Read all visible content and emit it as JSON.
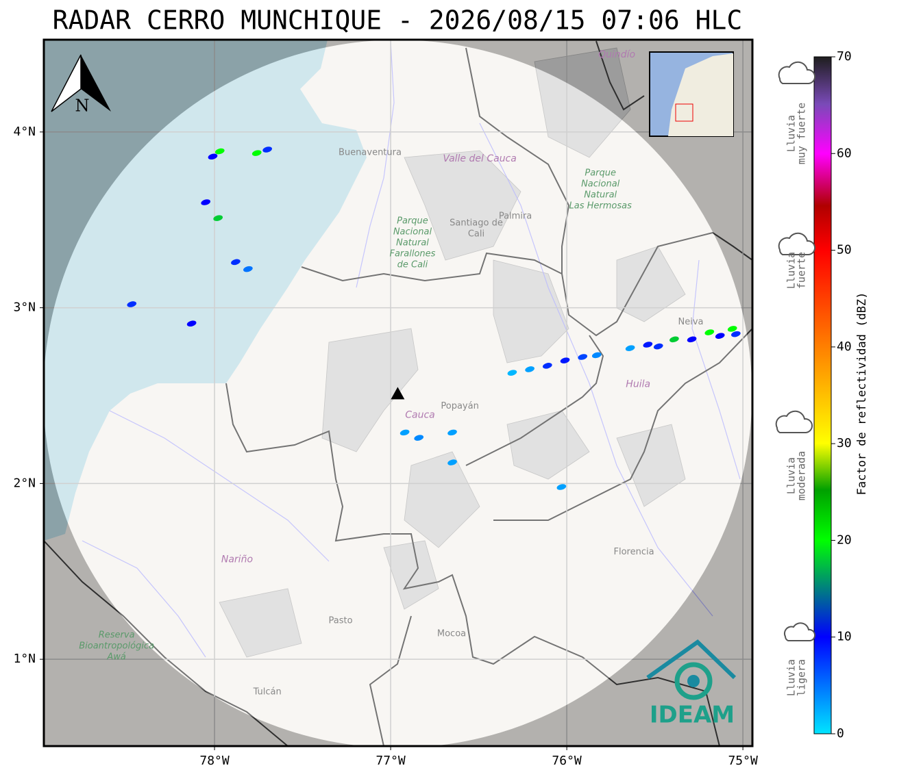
{
  "title": "RADAR CERRO MUNCHIQUE - 2026/08/15 07:06 HLC",
  "north": "N",
  "logo": "IDEAM",
  "map": {
    "xlim": [
      -78.969,
      -74.946
    ],
    "ylim": [
      0.506,
      4.525
    ],
    "xticks": [
      {
        "value": -78,
        "label": "78°W"
      },
      {
        "value": -77,
        "label": "77°W"
      },
      {
        "value": -76,
        "label": "76°W"
      },
      {
        "value": -75,
        "label": "75°W"
      }
    ],
    "yticks": [
      {
        "value": 1,
        "label": "1°N"
      },
      {
        "value": 2,
        "label": "2°N"
      },
      {
        "value": 3,
        "label": "3°N"
      },
      {
        "value": 4,
        "label": "4°N"
      }
    ],
    "radar": {
      "lon": -76.96,
      "lat": 2.51
    },
    "places": [
      {
        "kind": "place",
        "lon": -77.117,
        "lat": 3.883,
        "lines": [
          "Buenaventura"
        ]
      },
      {
        "kind": "dept",
        "lon": -76.494,
        "lat": 3.848,
        "lines": [
          "Valle del Cauca"
        ]
      },
      {
        "kind": "place",
        "lon": -76.514,
        "lat": 3.45,
        "lines": [
          "Santiago de",
          "Cali"
        ]
      },
      {
        "kind": "place",
        "lon": -76.292,
        "lat": 3.521,
        "lines": [
          "Palmira"
        ]
      },
      {
        "kind": "park",
        "lon": -76.876,
        "lat": 3.369,
        "lines": [
          "Parque",
          "Nacional",
          "Natural",
          "Farallones",
          "de Cali"
        ]
      },
      {
        "kind": "park",
        "lon": -75.809,
        "lat": 3.673,
        "lines": [
          "Parque",
          "Nacional",
          "Natural",
          "Las Hermosas"
        ]
      },
      {
        "kind": "place",
        "lon": -76.607,
        "lat": 2.439,
        "lines": [
          "Popayán"
        ]
      },
      {
        "kind": "dept",
        "lon": -76.833,
        "lat": 2.389,
        "lines": [
          "Cauca"
        ]
      },
      {
        "kind": "dept",
        "lon": -75.595,
        "lat": 2.564,
        "lines": [
          "Huila"
        ]
      },
      {
        "kind": "place",
        "lon": -75.296,
        "lat": 2.918,
        "lines": [
          "Neiva"
        ]
      },
      {
        "kind": "dept",
        "lon": -77.872,
        "lat": 1.568,
        "lines": [
          "Nariño"
        ]
      },
      {
        "kind": "place",
        "lon": -77.284,
        "lat": 1.218,
        "lines": [
          "Pasto"
        ]
      },
      {
        "kind": "place",
        "lon": -76.654,
        "lat": 1.144,
        "lines": [
          "Mocoa"
        ]
      },
      {
        "kind": "place",
        "lon": -75.619,
        "lat": 1.611,
        "lines": [
          "Florencia"
        ]
      },
      {
        "kind": "place",
        "lon": -77.7,
        "lat": 0.813,
        "lines": [
          "Tulcán"
        ]
      },
      {
        "kind": "dept",
        "lon": -75.716,
        "lat": 4.439,
        "lines": [
          "Quindío"
        ]
      },
      {
        "kind": "park",
        "lon": -78.556,
        "lat": 1.074,
        "lines": [
          "Reserva",
          "Bioantropológica",
          "Awá"
        ]
      }
    ],
    "echoes": [
      {
        "lon": -77.97,
        "lat": 3.89,
        "dbz": 20
      },
      {
        "lon": -77.76,
        "lat": 3.88,
        "dbz": 20
      },
      {
        "lon": -78.01,
        "lat": 3.86,
        "dbz": 10
      },
      {
        "lon": -77.7,
        "lat": 3.9,
        "dbz": 8
      },
      {
        "lon": -78.05,
        "lat": 3.6,
        "dbz": 10
      },
      {
        "lon": -77.98,
        "lat": 3.51,
        "dbz": 18
      },
      {
        "lon": -77.88,
        "lat": 3.26,
        "dbz": 8
      },
      {
        "lon": -77.81,
        "lat": 3.22,
        "dbz": 5
      },
      {
        "lon": -78.47,
        "lat": 3.02,
        "dbz": 8
      },
      {
        "lon": -78.13,
        "lat": 2.91,
        "dbz": 10
      },
      {
        "lon": -76.92,
        "lat": 2.29,
        "dbz": 3
      },
      {
        "lon": -76.84,
        "lat": 2.26,
        "dbz": 4
      },
      {
        "lon": -76.65,
        "lat": 2.29,
        "dbz": 3
      },
      {
        "lon": -76.65,
        "lat": 2.12,
        "dbz": 3
      },
      {
        "lon": -76.31,
        "lat": 2.63,
        "dbz": 2
      },
      {
        "lon": -76.21,
        "lat": 2.65,
        "dbz": 3
      },
      {
        "lon": -76.11,
        "lat": 2.67,
        "dbz": 8
      },
      {
        "lon": -76.01,
        "lat": 2.7,
        "dbz": 9
      },
      {
        "lon": -75.91,
        "lat": 2.72,
        "dbz": 7
      },
      {
        "lon": -75.83,
        "lat": 2.73,
        "dbz": 4
      },
      {
        "lon": -75.64,
        "lat": 2.77,
        "dbz": 3
      },
      {
        "lon": -75.54,
        "lat": 2.79,
        "dbz": 9
      },
      {
        "lon": -75.48,
        "lat": 2.78,
        "dbz": 8
      },
      {
        "lon": -75.39,
        "lat": 2.82,
        "dbz": 18
      },
      {
        "lon": -75.29,
        "lat": 2.82,
        "dbz": 10
      },
      {
        "lon": -75.19,
        "lat": 2.86,
        "dbz": 20
      },
      {
        "lon": -75.13,
        "lat": 2.84,
        "dbz": 10
      },
      {
        "lon": -75.06,
        "lat": 2.88,
        "dbz": 20
      },
      {
        "lon": -75.04,
        "lat": 2.85,
        "dbz": 8
      },
      {
        "lon": -76.03,
        "lat": 1.98,
        "dbz": 3
      }
    ]
  },
  "colorbar": {
    "label": "Factor de reflectividad (dBZ)",
    "lim": [
      0,
      70
    ],
    "ticks": [
      0,
      10,
      20,
      30,
      40,
      50,
      60,
      70
    ]
  },
  "legend": [
    {
      "lines": [
        "Lluvia",
        "muy fuerte"
      ]
    },
    {
      "lines": [
        "Lluvia",
        "fuerte"
      ]
    },
    {
      "lines": [
        "Lluvia",
        "moderada"
      ]
    },
    {
      "lines": [
        "Lluvia",
        "ligera"
      ]
    }
  ]
}
